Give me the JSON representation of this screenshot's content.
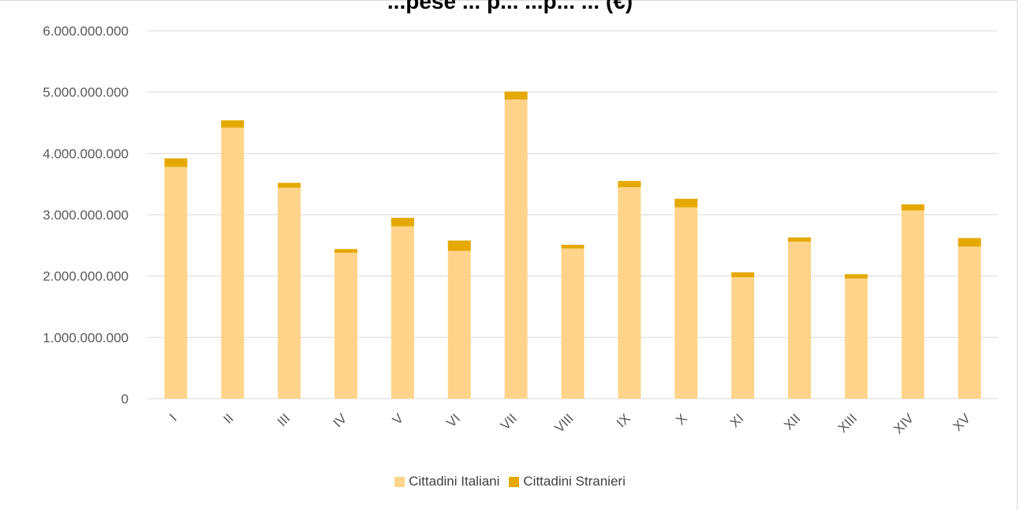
{
  "chart_data": {
    "type": "bar",
    "stacked": true,
    "title": "...pese ... p... ...p...  ... (€)",
    "categories": [
      "I",
      "II",
      "III",
      "IV",
      "V",
      "VI",
      "VII",
      "VIII",
      "IX",
      "X",
      "XI",
      "XII",
      "XIII",
      "XIV",
      "XV"
    ],
    "series": [
      {
        "name": "Cittadini Italiani",
        "color": "#ffd48a",
        "values": [
          3780000000,
          4420000000,
          3440000000,
          2380000000,
          2810000000,
          2410000000,
          4880000000,
          2450000000,
          3450000000,
          3120000000,
          1980000000,
          2560000000,
          1960000000,
          3070000000,
          2480000000
        ]
      },
      {
        "name": "Cittadini Stranieri",
        "color": "#e5a800",
        "values": [
          140000000,
          120000000,
          80000000,
          60000000,
          140000000,
          170000000,
          130000000,
          60000000,
          100000000,
          140000000,
          80000000,
          70000000,
          70000000,
          100000000,
          140000000
        ]
      }
    ],
    "ylim": [
      0,
      6000000000
    ],
    "yticks": [
      "0",
      "1.000.000.000",
      "2.000.000.000",
      "3.000.000.000",
      "4.000.000.000",
      "5.000.000.000",
      "6.000.000.000"
    ],
    "grid": true,
    "legend": "bottom"
  }
}
